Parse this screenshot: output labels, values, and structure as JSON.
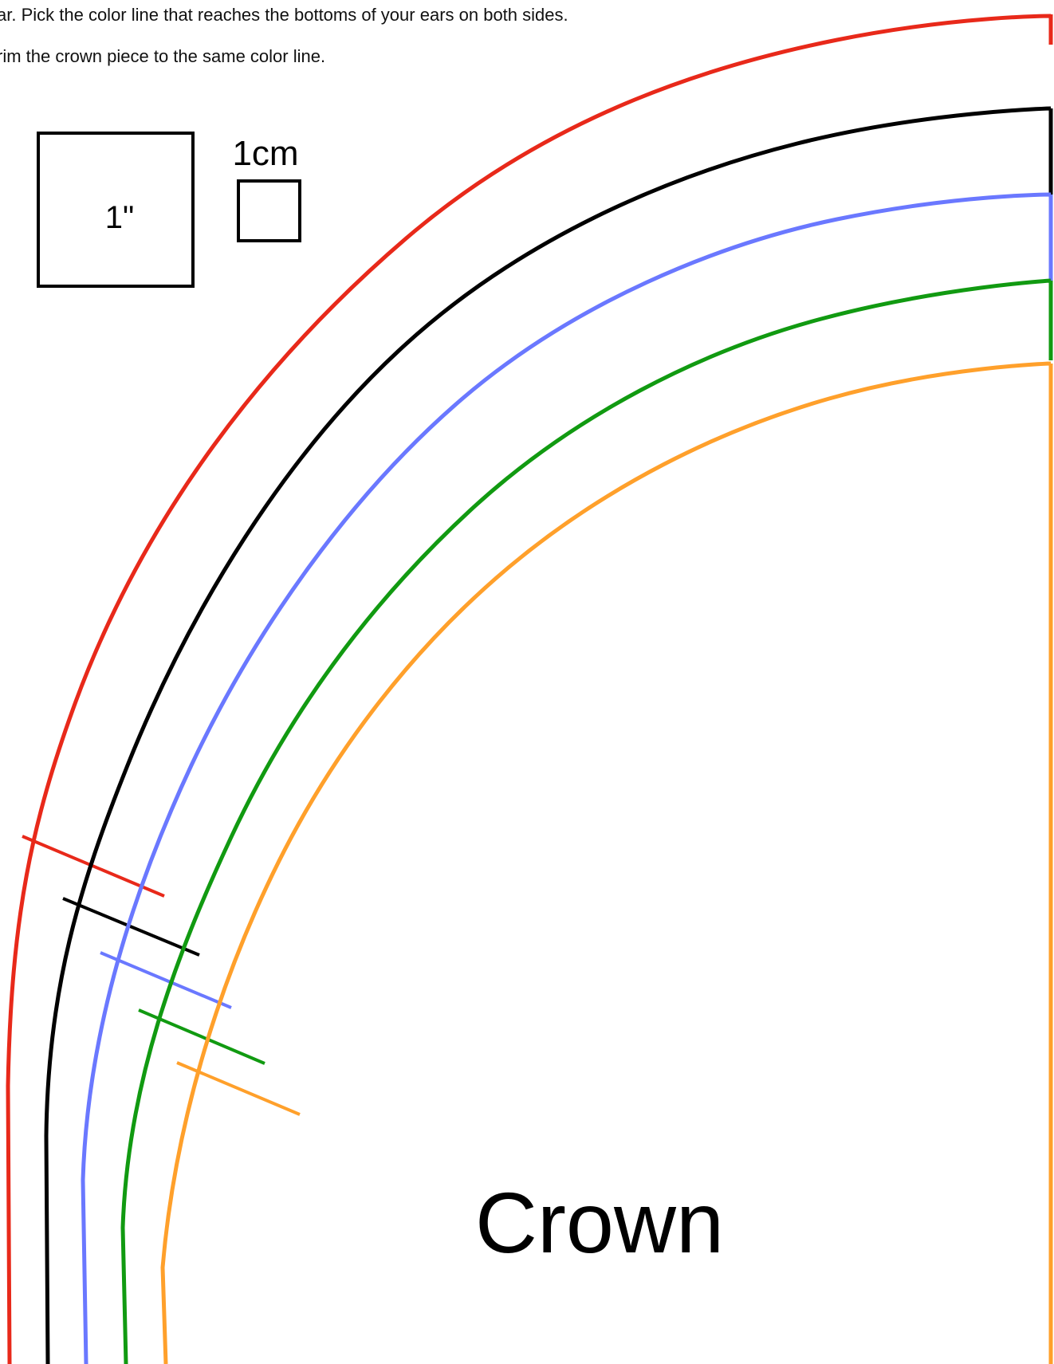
{
  "instructions": {
    "line1": "ar. Pick the color line that reaches the bottoms of your ears on both sides.",
    "line2": "rim the crown piece to the same color line."
  },
  "scale": {
    "inch_label": "1\"",
    "cm_label": "1cm"
  },
  "piece_label": "Crown",
  "size_lines": [
    {
      "color": "#e8291a"
    },
    {
      "color": "#000000"
    },
    {
      "color": "#6a78ff"
    },
    {
      "color": "#119a11"
    },
    {
      "color": "#ffa02b"
    }
  ]
}
